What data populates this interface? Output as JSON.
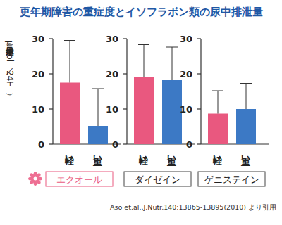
{
  "header": {
    "title": "更年期障害の重症度とイソフラボン類の尿中排泄量"
  },
  "footer": {
    "source": "Aso et.al.,J.Nutr.140:13865-13895(2010) より引用"
  },
  "chart_data": [
    {
      "type": "bar",
      "title": "エクオール",
      "y_label": "尿中排泄量（μmol／24H）",
      "categories": [
        "軽い",
        "重い"
      ],
      "values": [
        17.5,
        5.2
      ],
      "errors": [
        12,
        10.6
      ],
      "colors": [
        "#e9587f",
        "#3c79c5"
      ],
      "ylim": [
        0,
        30
      ],
      "yticks": [
        0,
        10,
        20,
        30
      ]
    },
    {
      "type": "bar",
      "title": "ダイゼイン",
      "categories": [
        "軽い",
        "重い"
      ],
      "values": [
        19,
        18.2
      ],
      "errors": [
        9.3,
        9.4
      ],
      "colors": [
        "#e9587f",
        "#3c79c5"
      ],
      "ylim": [
        0,
        30
      ],
      "yticks": [
        0,
        10,
        20,
        30
      ]
    },
    {
      "type": "bar",
      "title": "ゲニステイン",
      "categories": [
        "軽い",
        "重い"
      ],
      "values": [
        8.7,
        10
      ],
      "errors": [
        6.5,
        7.3
      ],
      "colors": [
        "#e9587f",
        "#3c79c5"
      ],
      "ylim": [
        0,
        30
      ],
      "yticks": [
        0,
        10,
        20,
        30
      ]
    }
  ]
}
